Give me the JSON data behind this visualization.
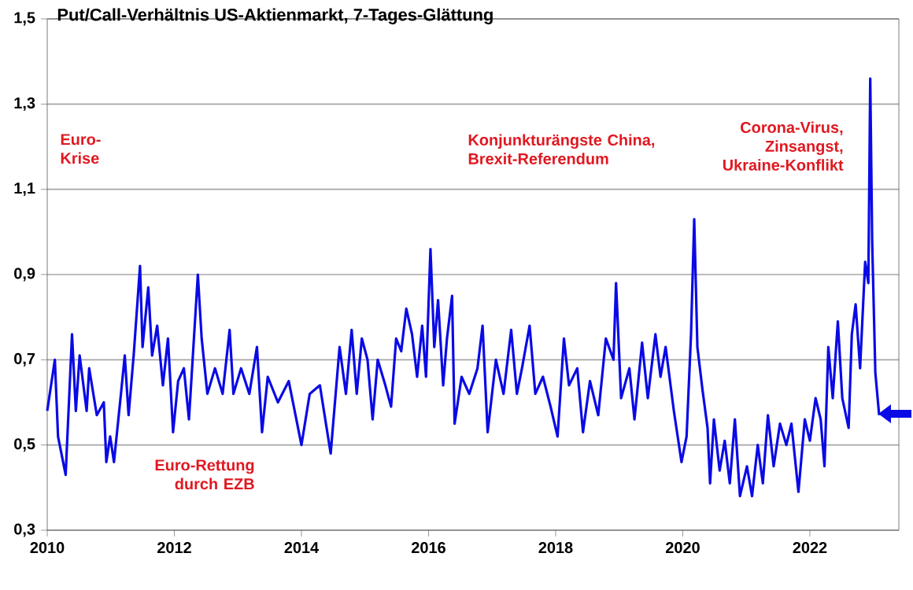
{
  "chart_data": {
    "type": "line",
    "title": "Put/Call-Verhältnis US-Aktienmarkt, 7-Tages-Glättung",
    "annotations": [
      "Euro-Krise",
      "Euro-Rettung durch EZB",
      "Konjunkturängste China, Brexit-Referendum",
      "Corona-Virus, Zinsangst, Ukraine-Konflikt"
    ],
    "series": [
      {
        "color": "#0a0ae6",
        "x": [
          2010.0,
          2010.12,
          2010.17,
          2010.29,
          2010.39,
          2010.45,
          2010.51,
          2010.62,
          2010.66,
          2010.78,
          2010.89,
          2010.93,
          2010.99,
          2011.05,
          2011.16,
          2011.22,
          2011.28,
          2011.36,
          2011.46,
          2011.5,
          2011.59,
          2011.65,
          2011.73,
          2011.82,
          2011.9,
          2011.98,
          2012.06,
          2012.15,
          2012.23,
          2012.37,
          2012.43,
          2012.52,
          2012.64,
          2012.76,
          2012.87,
          2012.93,
          2013.05,
          2013.18,
          2013.3,
          2013.38,
          2013.47,
          2013.63,
          2013.8,
          2014.0,
          2014.13,
          2014.29,
          2014.46,
          2014.6,
          2014.7,
          2014.79,
          2014.87,
          2014.95,
          2015.04,
          2015.12,
          2015.2,
          2015.32,
          2015.41,
          2015.49,
          2015.57,
          2015.65,
          2015.74,
          2015.82,
          2015.9,
          2015.96,
          2016.03,
          2016.09,
          2016.15,
          2016.23,
          2016.29,
          2016.37,
          2016.41,
          2016.52,
          2016.64,
          2016.77,
          2016.85,
          2016.93,
          2017.06,
          2017.18,
          2017.3,
          2017.39,
          2017.47,
          2017.59,
          2017.68,
          2017.8,
          2017.92,
          2018.03,
          2018.13,
          2018.21,
          2018.34,
          2018.43,
          2018.54,
          2018.67,
          2018.79,
          2018.91,
          2018.95,
          2019.03,
          2019.16,
          2019.24,
          2019.36,
          2019.45,
          2019.57,
          2019.65,
          2019.73,
          2019.86,
          2019.98,
          2020.06,
          2020.13,
          2020.18,
          2020.23,
          2020.31,
          2020.39,
          2020.43,
          2020.49,
          2020.58,
          2020.66,
          2020.74,
          2020.82,
          2020.9,
          2021.01,
          2021.09,
          2021.18,
          2021.26,
          2021.34,
          2021.43,
          2021.53,
          2021.63,
          2021.71,
          2021.82,
          2021.92,
          2022.0,
          2022.09,
          2022.17,
          2022.23,
          2022.29,
          2022.36,
          2022.44,
          2022.51,
          2022.61,
          2022.66,
          2022.72,
          2022.79,
          2022.87,
          2022.92,
          2022.95,
          2022.98,
          2023.03,
          2023.09
        ],
        "values": [
          0.58,
          0.7,
          0.52,
          0.43,
          0.76,
          0.58,
          0.71,
          0.58,
          0.68,
          0.57,
          0.6,
          0.46,
          0.52,
          0.46,
          0.62,
          0.71,
          0.57,
          0.71,
          0.92,
          0.73,
          0.87,
          0.71,
          0.78,
          0.64,
          0.75,
          0.53,
          0.65,
          0.68,
          0.56,
          0.9,
          0.75,
          0.62,
          0.68,
          0.62,
          0.77,
          0.62,
          0.68,
          0.62,
          0.73,
          0.53,
          0.66,
          0.6,
          0.65,
          0.5,
          0.62,
          0.64,
          0.48,
          0.73,
          0.62,
          0.77,
          0.62,
          0.75,
          0.7,
          0.56,
          0.7,
          0.64,
          0.59,
          0.75,
          0.72,
          0.82,
          0.76,
          0.66,
          0.78,
          0.66,
          0.96,
          0.73,
          0.84,
          0.64,
          0.75,
          0.85,
          0.55,
          0.66,
          0.62,
          0.68,
          0.78,
          0.53,
          0.7,
          0.62,
          0.77,
          0.62,
          0.68,
          0.78,
          0.62,
          0.66,
          0.59,
          0.52,
          0.75,
          0.64,
          0.68,
          0.53,
          0.65,
          0.57,
          0.75,
          0.7,
          0.88,
          0.61,
          0.68,
          0.56,
          0.74,
          0.61,
          0.76,
          0.66,
          0.73,
          0.58,
          0.46,
          0.52,
          0.76,
          1.03,
          0.73,
          0.63,
          0.54,
          0.41,
          0.56,
          0.44,
          0.51,
          0.41,
          0.56,
          0.38,
          0.45,
          0.38,
          0.5,
          0.41,
          0.57,
          0.45,
          0.55,
          0.5,
          0.55,
          0.39,
          0.56,
          0.51,
          0.61,
          0.56,
          0.45,
          0.73,
          0.61,
          0.79,
          0.61,
          0.54,
          0.76,
          0.83,
          0.68,
          0.93,
          0.88,
          1.36,
          0.98,
          0.67,
          0.57
        ]
      }
    ],
    "xlim": [
      2010,
      2023.4
    ],
    "xticks": [
      2010,
      2012,
      2014,
      2016,
      2018,
      2020,
      2022
    ],
    "ylim": [
      0.3,
      1.5
    ],
    "yticks": [
      {
        "value": 0.3,
        "label": "0,3"
      },
      {
        "value": 0.5,
        "label": "0,5"
      },
      {
        "value": 0.7,
        "label": "0,7"
      },
      {
        "value": 0.9,
        "label": "0,9"
      },
      {
        "value": 1.1,
        "label": "1,1"
      },
      {
        "value": 1.3,
        "label": "1,3"
      },
      {
        "value": 1.5,
        "label": "1,5"
      }
    ],
    "grid": "y",
    "marker": "none",
    "line_style": "solid"
  }
}
